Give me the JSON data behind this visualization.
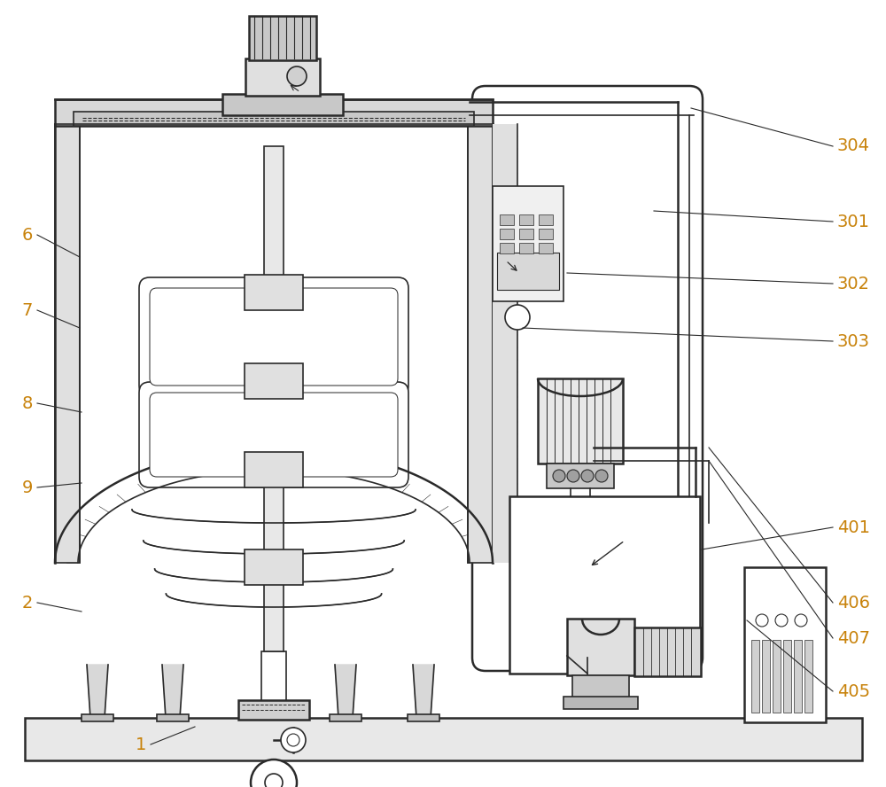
{
  "bg_color": "#ffffff",
  "line_color": "#2a2a2a",
  "label_color": "#c8820a",
  "fig_width": 10.0,
  "fig_height": 8.88,
  "dpi": 100
}
